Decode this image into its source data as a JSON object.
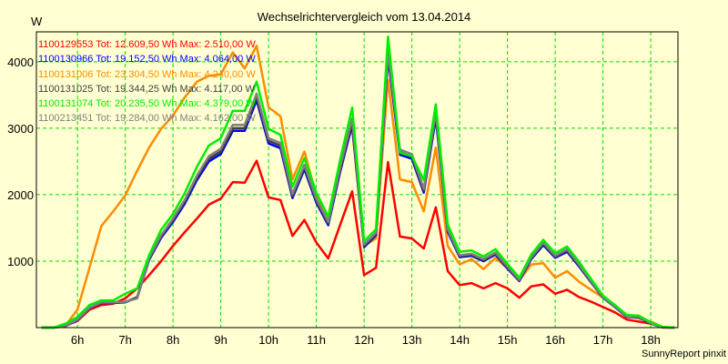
{
  "chart_data": {
    "type": "line",
    "title": "Wechselrichtervergleich vom 13.04.2014",
    "ylabel": "W",
    "xlabel": "",
    "ylim": [
      0,
      4450
    ],
    "xlim": [
      5.14,
      18.57
    ],
    "grid": true,
    "legend_position": "top-left",
    "y_ticks": [
      {
        "value": 1000,
        "label": "1000"
      },
      {
        "value": 2000,
        "label": "2000"
      },
      {
        "value": 3000,
        "label": "3000"
      },
      {
        "value": 4000,
        "label": "4000"
      }
    ],
    "x_ticks": [
      {
        "value": 6,
        "label": "6h"
      },
      {
        "value": 7,
        "label": "7h"
      },
      {
        "value": 8,
        "label": "8h"
      },
      {
        "value": 9,
        "label": "9h"
      },
      {
        "value": 10,
        "label": "10h"
      },
      {
        "value": 11,
        "label": "11h"
      },
      {
        "value": 12,
        "label": "12h"
      },
      {
        "value": 13,
        "label": "13h"
      },
      {
        "value": 14,
        "label": "14h"
      },
      {
        "value": 15,
        "label": "15h"
      },
      {
        "value": 16,
        "label": "16h"
      },
      {
        "value": 17,
        "label": "17h"
      },
      {
        "value": 18,
        "label": "18h"
      }
    ],
    "x": [
      5.25,
      5.5,
      5.75,
      6,
      6.25,
      6.5,
      6.75,
      7,
      7.25,
      7.5,
      7.75,
      8,
      8.25,
      8.5,
      8.75,
      9,
      9.25,
      9.5,
      9.75,
      10,
      10.25,
      10.5,
      10.75,
      11,
      11.25,
      11.5,
      11.75,
      12,
      12.25,
      12.5,
      12.75,
      13,
      13.25,
      13.5,
      13.75,
      14,
      14.25,
      14.5,
      14.75,
      15,
      15.25,
      15.5,
      15.75,
      16,
      16.25,
      16.5,
      16.75,
      17,
      17.25,
      17.5,
      17.75,
      18,
      18.25,
      18.5
    ],
    "series": [
      {
        "name": "1100129553",
        "legend": "1100129553 Tot: 12.609,50 Wh Max: 2.510,00 W",
        "color": "#ff0000",
        "values": [
          0,
          0,
          30,
          100,
          270,
          340,
          360,
          440,
          590,
          790,
          1000,
          1230,
          1440,
          1640,
          1850,
          1940,
          2190,
          2180,
          2510,
          1960,
          1920,
          1380,
          1620,
          1280,
          1040,
          1550,
          2050,
          790,
          900,
          2490,
          1370,
          1340,
          1190,
          1810,
          850,
          640,
          670,
          590,
          670,
          590,
          450,
          620,
          650,
          510,
          570,
          460,
          390,
          310,
          230,
          120,
          90,
          60,
          0,
          0
        ]
      },
      {
        "name": "1100131006",
        "legend": "1100131006 Tot: 23.304,50 Wh Max: 4.240,00 W",
        "color": "#ff8c00",
        "values": [
          0,
          0,
          30,
          270,
          900,
          1530,
          1750,
          1990,
          2360,
          2710,
          2990,
          3190,
          3470,
          3700,
          3790,
          3810,
          4140,
          3900,
          4240,
          3315,
          3180,
          2230,
          2650,
          1990,
          1600,
          2530,
          2990,
          1230,
          1340,
          3730,
          2230,
          2190,
          1750,
          2710,
          1230,
          950,
          1030,
          880,
          1050,
          890,
          710,
          950,
          970,
          750,
          850,
          690,
          570,
          450,
          340,
          180,
          140,
          90,
          10,
          0
        ]
      },
      {
        "name": "1100130966",
        "legend": "1100130966 Tot: 19.152,50 Wh Max: 4.064,00 W",
        "color": "#0000ff",
        "values": [
          0,
          0,
          25,
          110,
          290,
          370,
          370,
          380,
          450,
          1020,
          1350,
          1590,
          1870,
          2220,
          2500,
          2610,
          2960,
          2960,
          3420,
          2770,
          2700,
          1950,
          2380,
          1880,
          1540,
          2350,
          3050,
          1210,
          1390,
          4064,
          2600,
          2540,
          2030,
          3150,
          1440,
          1060,
          1080,
          1000,
          1100,
          890,
          700,
          1030,
          1240,
          1050,
          1140,
          920,
          680,
          450,
          310,
          160,
          150,
          65,
          5,
          0
        ]
      },
      {
        "name": "1100131025",
        "legend": "1100131025 Tot: 19.344,25 Wh Max: 4.117,00 W",
        "color": "#404040",
        "values": [
          0,
          0,
          30,
          115,
          295,
          375,
          375,
          385,
          460,
          1035,
          1370,
          1615,
          1900,
          2255,
          2540,
          2650,
          3000,
          3000,
          3470,
          2810,
          2740,
          1980,
          2410,
          1910,
          1565,
          2385,
          3100,
          1230,
          1410,
          4117,
          2640,
          2570,
          2060,
          3200,
          1460,
          1075,
          1095,
          1015,
          1115,
          905,
          710,
          1045,
          1260,
          1065,
          1160,
          935,
          690,
          455,
          315,
          165,
          155,
          70,
          5,
          0
        ]
      },
      {
        "name": "1100213451",
        "legend": "1100213451 Tot: 19.284,00 Wh Max: 4.162,00 W",
        "color": "#808080",
        "values": [
          0,
          0,
          30,
          120,
          300,
          380,
          380,
          390,
          440,
          1050,
          1390,
          1640,
          1930,
          2290,
          2580,
          2690,
          3050,
          3050,
          3520,
          2850,
          2780,
          2010,
          2450,
          1940,
          1590,
          2420,
          3150,
          1250,
          1430,
          4162,
          2680,
          2610,
          2090,
          3250,
          1480,
          1090,
          1110,
          1030,
          1130,
          920,
          720,
          1060,
          1280,
          1080,
          1180,
          950,
          700,
          460,
          320,
          170,
          160,
          70,
          5,
          0
        ]
      },
      {
        "name": "1100131074",
        "legend": "1100131074 Tot: 20.235,50 Wh Max: 4.379,00 W",
        "color": "#00ee00",
        "values": [
          0,
          0,
          60,
          160,
          340,
          410,
          410,
          510,
          590,
          1090,
          1470,
          1710,
          2030,
          2420,
          2740,
          2850,
          3260,
          3260,
          3700,
          2990,
          2900,
          2120,
          2550,
          2030,
          1670,
          2530,
          3310,
          1300,
          1480,
          4379,
          2630,
          2580,
          2220,
          3360,
          1550,
          1140,
          1160,
          1070,
          1180,
          960,
          750,
          1100,
          1320,
          1120,
          1220,
          990,
          730,
          480,
          340,
          190,
          180,
          80,
          10,
          0
        ]
      }
    ],
    "legend_order": [
      0,
      2,
      1,
      3,
      5,
      4
    ],
    "credit": "SunnyReport pinxit"
  }
}
